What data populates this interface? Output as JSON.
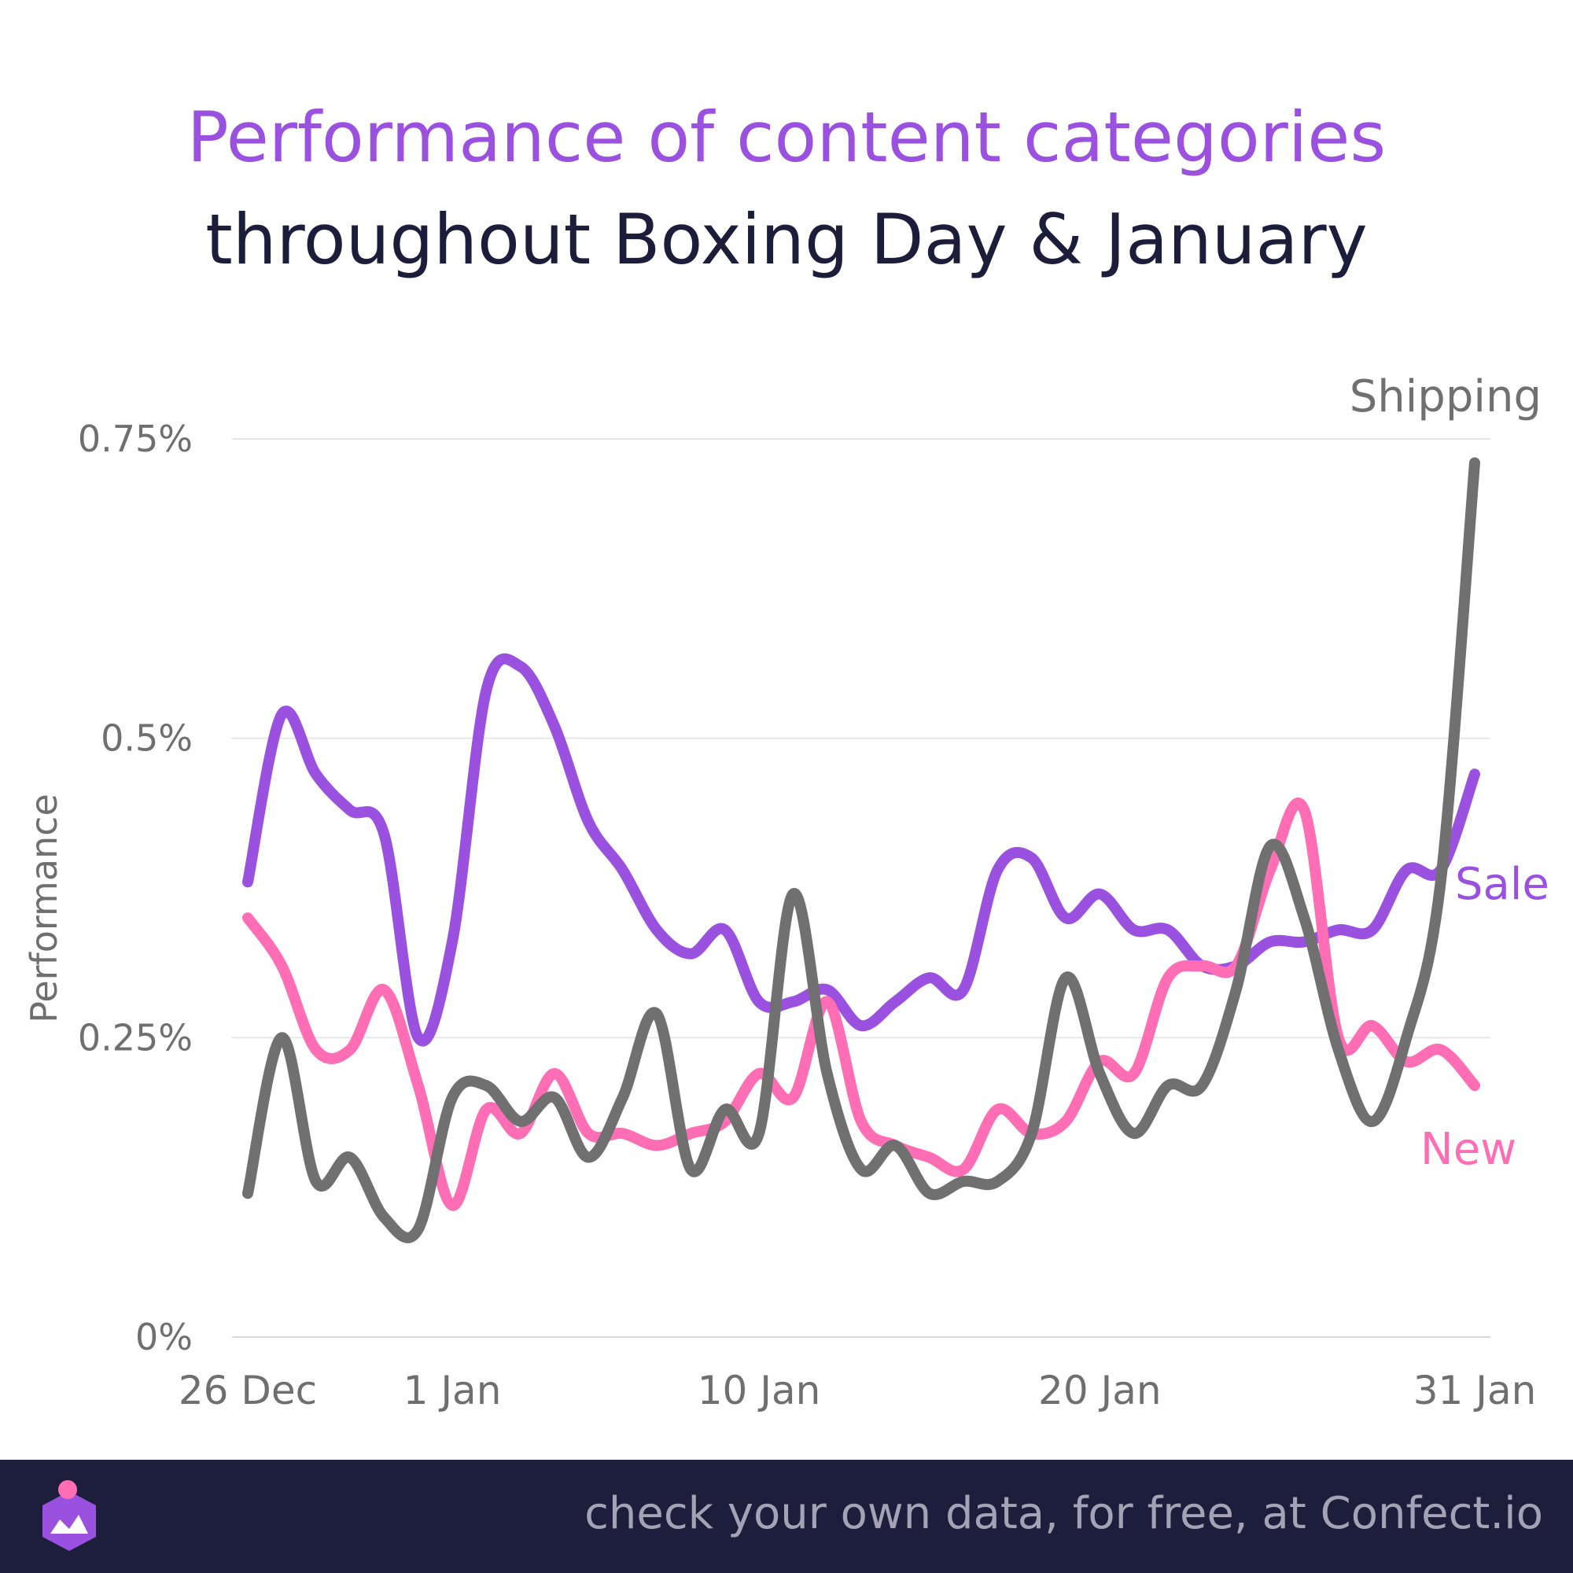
{
  "title_line1": "Performance of content categories",
  "title_line2": "throughout Boxing Day & January",
  "footer_text": "check your own data, for free, at Confect.io",
  "colors": {
    "title_accent": "#9b51e0",
    "title_dark": "#1b1d3a",
    "footer_bg": "#1c1e3b",
    "grid": "#e6e6e6",
    "axis_text": "#6f6f6f"
  },
  "chart_data": {
    "type": "line",
    "ylabel": "Performance",
    "ylim": [
      0,
      0.75
    ],
    "y_ticks": [
      0,
      0.25,
      0.5,
      0.75
    ],
    "y_tick_labels": [
      "0%",
      "0.25%",
      "0.5%",
      "0.75%"
    ],
    "x_tick_labels": [
      "26 Dec",
      "1 Jan",
      "10 Jan",
      "20 Jan",
      "31 Jan"
    ],
    "x_tick_dates": [
      "2023-12-26",
      "2024-01-01",
      "2024-01-10",
      "2024-01-20",
      "2024-01-31"
    ],
    "grid": true,
    "x": [
      "2023-12-26",
      "2023-12-27",
      "2023-12-28",
      "2023-12-29",
      "2023-12-30",
      "2023-12-31",
      "2024-01-01",
      "2024-01-02",
      "2024-01-03",
      "2024-01-04",
      "2024-01-05",
      "2024-01-06",
      "2024-01-07",
      "2024-01-08",
      "2024-01-09",
      "2024-01-10",
      "2024-01-11",
      "2024-01-12",
      "2024-01-13",
      "2024-01-14",
      "2024-01-15",
      "2024-01-16",
      "2024-01-17",
      "2024-01-18",
      "2024-01-19",
      "2024-01-20",
      "2024-01-21",
      "2024-01-22",
      "2024-01-23",
      "2024-01-24",
      "2024-01-25",
      "2024-01-26",
      "2024-01-27",
      "2024-01-28",
      "2024-01-29",
      "2024-01-30",
      "2024-01-31"
    ],
    "series": [
      {
        "name": "Sale",
        "color": "#9b51e0",
        "values": [
          0.38,
          0.52,
          0.47,
          0.44,
          0.42,
          0.25,
          0.33,
          0.54,
          0.56,
          0.51,
          0.43,
          0.39,
          0.34,
          0.32,
          0.34,
          0.28,
          0.28,
          0.29,
          0.26,
          0.28,
          0.3,
          0.29,
          0.39,
          0.4,
          0.35,
          0.37,
          0.34,
          0.34,
          0.31,
          0.31,
          0.33,
          0.33,
          0.34,
          0.34,
          0.39,
          0.39,
          0.47
        ]
      },
      {
        "name": "New",
        "color": "#ff6eb4",
        "values": [
          0.35,
          0.31,
          0.24,
          0.24,
          0.29,
          0.21,
          0.11,
          0.19,
          0.17,
          0.22,
          0.17,
          0.17,
          0.16,
          0.17,
          0.18,
          0.22,
          0.2,
          0.28,
          0.18,
          0.16,
          0.15,
          0.14,
          0.19,
          0.17,
          0.18,
          0.23,
          0.22,
          0.3,
          0.31,
          0.31,
          0.39,
          0.44,
          0.25,
          0.26,
          0.23,
          0.24,
          0.21
        ]
      },
      {
        "name": "Shipping",
        "color": "#707070",
        "values": [
          0.12,
          0.25,
          0.13,
          0.15,
          0.1,
          0.09,
          0.2,
          0.21,
          0.18,
          0.2,
          0.15,
          0.2,
          0.27,
          0.14,
          0.19,
          0.17,
          0.37,
          0.22,
          0.14,
          0.16,
          0.12,
          0.13,
          0.13,
          0.17,
          0.3,
          0.22,
          0.17,
          0.21,
          0.21,
          0.29,
          0.41,
          0.35,
          0.24,
          0.18,
          0.25,
          0.38,
          0.73
        ]
      }
    ]
  }
}
